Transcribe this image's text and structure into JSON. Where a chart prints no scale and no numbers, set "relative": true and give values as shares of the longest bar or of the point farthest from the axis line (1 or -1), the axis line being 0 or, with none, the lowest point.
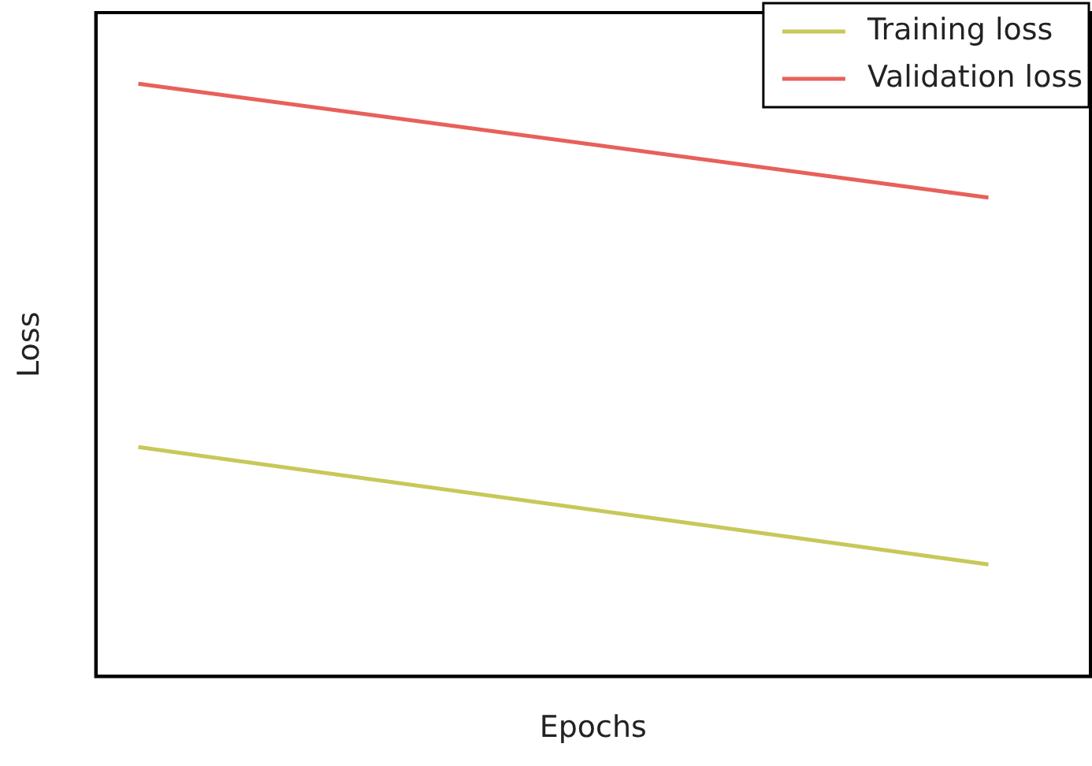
{
  "chart_data": {
    "type": "line",
    "xlabel": "Epochs",
    "ylabel": "Loss",
    "relative": true,
    "categories": [
      null,
      null
    ],
    "legend": "top right",
    "grid": false,
    "marker": "none",
    "line_style": "solid",
    "series": [
      {
        "name": "Training loss",
        "color": "#c8c85a",
        "values": [
          0.387,
          0.189
        ]
      },
      {
        "name": "Validation loss",
        "color": "#e8605a",
        "values": [
          1,
          0.808
        ]
      }
    ]
  }
}
